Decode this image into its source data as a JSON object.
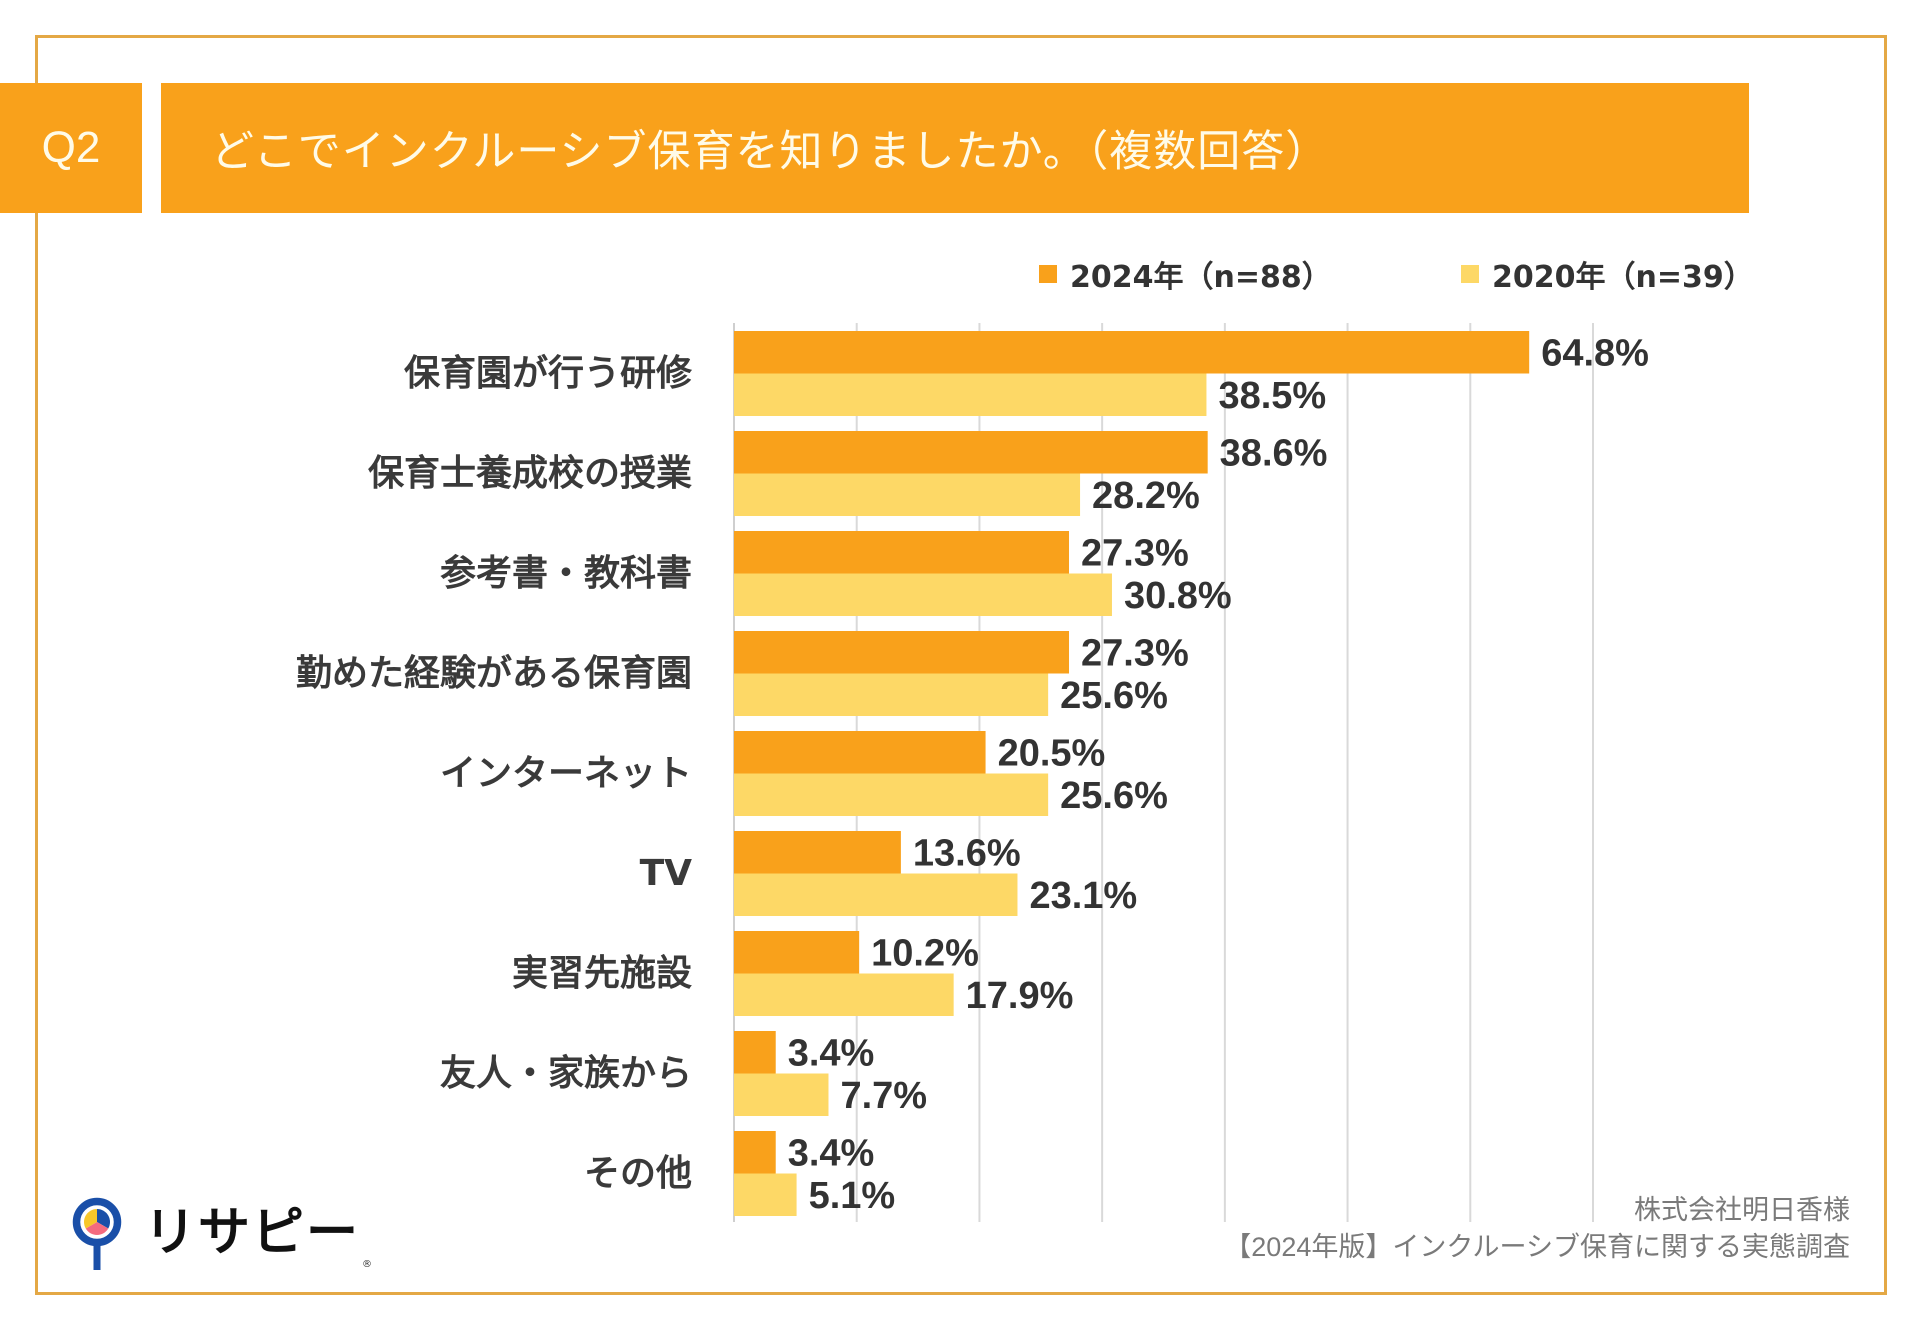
{
  "header": {
    "question_number": "Q2",
    "title": "どこでインクルーシブ保育を知りましたか。（複数回答）"
  },
  "colors": {
    "accent_orange": "#F9A11B",
    "series_2024": "#F9A11B",
    "series_2020": "#FDD866",
    "frame": "#E4A845",
    "gridline": "#d9d9d9",
    "logo_blue": "#1A4FA8",
    "logo_yellow": "#F8C72A",
    "logo_pink": "#F46B7F"
  },
  "chart_data": {
    "type": "bar",
    "orientation": "horizontal",
    "title": "どこでインクルーシブ保育を知りましたか。（複数回答）",
    "xlabel": "",
    "ylabel": "",
    "xlim": [
      0,
      70
    ],
    "x_unit": "%",
    "grid": true,
    "legend_position": "top-right",
    "categories": [
      "保育園が行う研修",
      "保育士養成校の授業",
      "参考書・教科書",
      "勤めた経験がある保育園",
      "インターネット",
      "TV",
      "実習先施設",
      "友人・家族から",
      "その他"
    ],
    "series": [
      {
        "name": "2024年（n=88）",
        "values": [
          64.8,
          38.6,
          27.3,
          27.3,
          20.5,
          13.6,
          10.2,
          3.4,
          3.4
        ],
        "labels": [
          "64.8%",
          "38.6%",
          "27.3%",
          "27.3%",
          "20.5%",
          "13.6%",
          "10.2%",
          "3.4%",
          "3.4%"
        ]
      },
      {
        "name": "2020年（n=39）",
        "values": [
          38.5,
          28.2,
          30.8,
          25.6,
          25.6,
          23.1,
          17.9,
          7.7,
          5.1
        ],
        "labels": [
          "38.5%",
          "28.2%",
          "30.8%",
          "25.6%",
          "25.6%",
          "23.1%",
          "17.9%",
          "7.7%",
          "5.1%"
        ]
      }
    ]
  },
  "footer": {
    "logo_text": "リサピー",
    "logo_registered": "®",
    "credit_line1": "株式会社明日香様",
    "credit_line2": "【2024年版】インクルーシブ保育に関する実態調査"
  }
}
